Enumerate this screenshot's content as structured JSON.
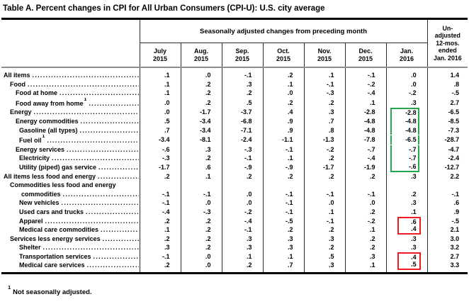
{
  "title": "Table A. Percent changes in CPI for All Urban Consumers (CPI-U): U.S. city average",
  "header": {
    "span_label": "Seasonally adjusted changes from preceding month",
    "months": [
      "July 2015",
      "Aug. 2015",
      "Sep. 2015",
      "Oct. 2015",
      "Nov. 2015",
      "Dec. 2015",
      "Jan. 2016"
    ],
    "unadjusted_lines": [
      "Un-",
      "adjusted",
      "12-mos.",
      "ended",
      "Jan. 2016"
    ]
  },
  "columns": [
    "jul-2015",
    "aug-2015",
    "sep-2015",
    "oct-2015",
    "nov-2015",
    "dec-2015",
    "jan-2016",
    "unadjusted-12mo"
  ],
  "rows": [
    {
      "label": "All items",
      "indent": 0,
      "values": [
        ".1",
        ".0",
        "-.1",
        ".2",
        ".1",
        "-.1",
        ".0",
        "1.4"
      ]
    },
    {
      "label": "Food",
      "indent": 1,
      "values": [
        ".1",
        ".2",
        ".3",
        ".1",
        "-.1",
        "-.2",
        ".0",
        ".8"
      ]
    },
    {
      "label": "Food at home",
      "indent": 2,
      "values": [
        ".1",
        ".2",
        ".2",
        ".0",
        "-.3",
        "-.4",
        "-.2",
        "-.5"
      ]
    },
    {
      "label": "Food away from home",
      "sup": "1",
      "indent": 2,
      "values": [
        ".0",
        ".2",
        ".5",
        ".2",
        ".2",
        ".1",
        ".3",
        "2.7"
      ]
    },
    {
      "label": "Energy",
      "indent": 1,
      "box": "green-top",
      "values": [
        ".0",
        "-1.7",
        "-3.7",
        ".4",
        ".3",
        "-2.8",
        "-2.8",
        "-6.5"
      ]
    },
    {
      "label": "Energy commodities",
      "indent": 2,
      "box": "green-mid",
      "values": [
        ".5",
        "-3.4",
        "-6.8",
        ".9",
        ".7",
        "-4.8",
        "-4.8",
        "-8.5"
      ]
    },
    {
      "label": "Gasoline (all types)",
      "indent": 3,
      "box": "green-mid",
      "values": [
        ".7",
        "-3.4",
        "-7.1",
        ".9",
        ".8",
        "-4.8",
        "-4.8",
        "-7.3"
      ]
    },
    {
      "label": "Fuel oil",
      "sup": "1",
      "indent": 3,
      "box": "green-mid",
      "values": [
        "-3.4",
        "-8.1",
        "-2.4",
        "-1.1",
        "-1.3",
        "-7.8",
        "-6.5",
        "-28.7"
      ]
    },
    {
      "label": "Energy services",
      "indent": 2,
      "box": "green-mid",
      "values": [
        "-.6",
        ".3",
        "-.3",
        "-.1",
        "-.2",
        "-.7",
        "-.7",
        "-4.7"
      ]
    },
    {
      "label": "Electricity",
      "indent": 3,
      "box": "green-mid",
      "values": [
        "-.3",
        ".2",
        "-.1",
        ".1",
        ".2",
        "-.4",
        "-.7",
        "-2.4"
      ]
    },
    {
      "label": "Utility (piped) gas service",
      "indent": 3,
      "box": "green-bot",
      "values": [
        "-1.7",
        ".6",
        "-.9",
        "-.9",
        "-1.7",
        "-1.9",
        "-.6",
        "-12.7"
      ]
    },
    {
      "label": "All items less food and energy",
      "indent": 0,
      "values": [
        ".2",
        ".1",
        ".2",
        ".2",
        ".2",
        ".2",
        ".3",
        "2.2"
      ]
    },
    {
      "label": "Commodities less food and energy commodities",
      "label_lines": [
        "Commodities less food and energy",
        "commodities"
      ],
      "indent": 1,
      "values": [
        "-.1",
        "-.1",
        ".0",
        "-.1",
        "-.1",
        "-.1",
        ".2",
        "-.1"
      ]
    },
    {
      "label": "New vehicles",
      "indent": 3,
      "values": [
        "-.1",
        ".0",
        ".0",
        "-.1",
        ".0",
        ".0",
        ".3",
        ".6"
      ]
    },
    {
      "label": "Used cars and trucks",
      "indent": 3,
      "values": [
        "-.4",
        "-.3",
        "-.2",
        "-.1",
        ".1",
        ".2",
        ".1",
        ".9"
      ]
    },
    {
      "label": "Apparel",
      "indent": 3,
      "box": "red-top",
      "values": [
        ".2",
        ".2",
        "-.4",
        "-.5",
        "-.1",
        "-.2",
        ".6",
        "-.5"
      ]
    },
    {
      "label": "Medical care commodities",
      "indent": 3,
      "box": "red-bot",
      "values": [
        ".1",
        ".2",
        "-.1",
        ".2",
        ".2",
        ".1",
        ".4",
        "2.1"
      ]
    },
    {
      "label": "Services less energy services",
      "indent": 1,
      "values": [
        ".2",
        ".2",
        ".3",
        ".3",
        ".3",
        ".2",
        ".3",
        "3.0"
      ]
    },
    {
      "label": "Shelter",
      "indent": 3,
      "values": [
        ".3",
        ".2",
        ".3",
        ".3",
        ".2",
        ".2",
        ".3",
        "3.2"
      ]
    },
    {
      "label": "Transportation services",
      "indent": 3,
      "box": "red-top",
      "values": [
        "-.1",
        ".0",
        ".1",
        ".1",
        ".5",
        ".3",
        ".4",
        "2.7"
      ]
    },
    {
      "label": "Medical care services",
      "indent": 3,
      "box": "red-bot",
      "values": [
        ".2",
        ".0",
        ".2",
        ".7",
        ".3",
        ".1",
        ".5",
        "3.3"
      ]
    }
  ],
  "highlight_colors": {
    "green": "#27a74d",
    "red": "#ed1c24"
  },
  "footnote": {
    "sup": "1",
    "text": "Not seasonally adjusted."
  }
}
